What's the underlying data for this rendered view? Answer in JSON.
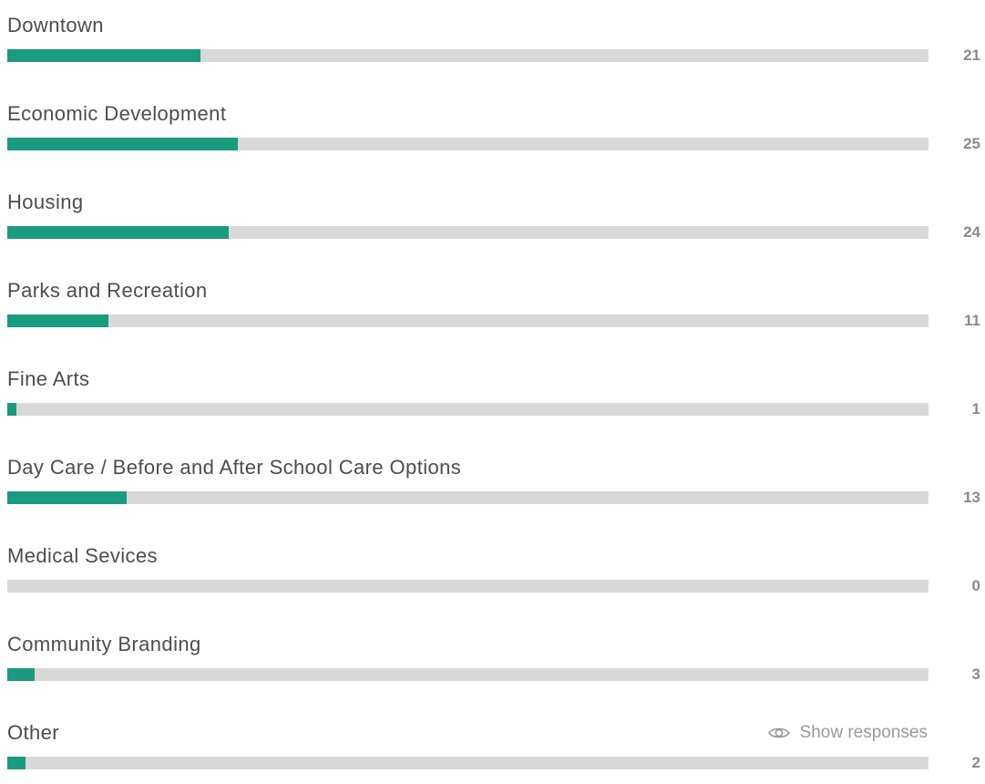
{
  "chart_data": {
    "type": "bar",
    "orientation": "horizontal",
    "max_value": 100,
    "accent_color": "#1a9a7f",
    "track_color": "#d8d8d8",
    "categories": [
      "Downtown",
      "Economic Development",
      "Housing",
      "Parks and Recreation",
      "Fine Arts",
      "Day Care / Before and After School Care Options",
      "Medical Sevices",
      "Community Branding",
      "Other"
    ],
    "values": [
      21,
      25,
      24,
      11,
      1,
      13,
      0,
      3,
      2
    ],
    "value_labels": [
      "21",
      "25",
      "24",
      "11",
      "1",
      "13",
      "0",
      "3",
      "2"
    ]
  },
  "other_action": {
    "label": "Show responses",
    "icon": "eye-icon"
  }
}
